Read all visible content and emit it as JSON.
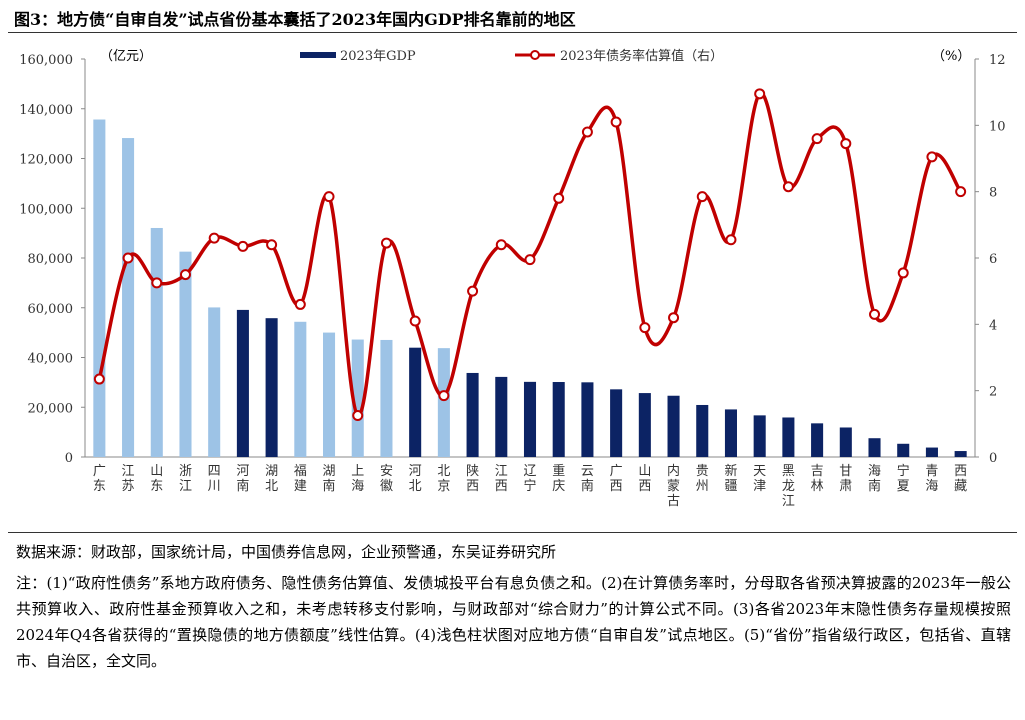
{
  "title": "图3：地方债“自审自发”试点省份基本囊括了2023年国内GDP排名靠前的地区",
  "source": "数据来源：财政部，国家统计局，中国债券信息网，企业预警通，东吴证券研究所",
  "notes": "注：(1)“政府性债务”系地方政府债务、隐性债务估算值、发债城投平台有息负债之和。(2)在计算债务率时，分母取各省预决算披露的2023年一般公共预算收入、政府性基金预算收入之和，未考虑转移支付影响，与财政部对“综合财力”的计算公式不同。(3)各省2023年末隐性债务存量规模按照2024年Q4各省获得的“置换隐债的地方债额度”线性估算。(4)浅色柱状图对应地方债“自审自发”试点地区。(5)“省份”指省级行政区，包括省、直辖市、自治区，全文同。",
  "chart_data": {
    "type": "bar+line",
    "left_unit": "（亿元）",
    "right_unit": "（%）",
    "ylim": [
      0,
      160000
    ],
    "y2lim": [
      0,
      12
    ],
    "yticks": [
      "0",
      "20,000",
      "40,000",
      "60,000",
      "80,000",
      "100,000",
      "120,000",
      "140,000",
      "160,000"
    ],
    "y2ticks": [
      "0",
      "2",
      "4",
      "6",
      "8",
      "10",
      "12"
    ],
    "legend_position": "top",
    "colors": {
      "pilot": "#9dc3e6",
      "nonpilot": "#0c2364",
      "line": "#c00000"
    },
    "categories": [
      "广东",
      "江苏",
      "山东",
      "浙江",
      "四川",
      "河南",
      "湖北",
      "福建",
      "湖南",
      "上海",
      "安徽",
      "河北",
      "北京",
      "陕西",
      "江西",
      "辽宁",
      "重庆",
      "云南",
      "广西",
      "山西",
      "内蒙古",
      "贵州",
      "新疆",
      "天津",
      "黑龙江",
      "吉林",
      "甘肃",
      "海南",
      "宁夏",
      "青海",
      "西藏"
    ],
    "pilot": [
      1,
      1,
      1,
      1,
      1,
      0,
      0,
      1,
      1,
      1,
      1,
      0,
      1,
      0,
      0,
      0,
      0,
      0,
      0,
      0,
      0,
      0,
      0,
      0,
      0,
      0,
      0,
      0,
      0,
      0,
      0
    ],
    "series": [
      {
        "name": "2023年GDP",
        "axis": "left",
        "type": "bar",
        "values": [
          135673,
          128222,
          92069,
          82553,
          60133,
          59132,
          55804,
          54355,
          50013,
          47219,
          47051,
          43944,
          43761,
          33786,
          32200,
          30209,
          30146,
          30021,
          27202,
          25698,
          24628,
          20913,
          19126,
          16737,
          15884,
          13531,
          11864,
          7551,
          5315,
          3799,
          2393
        ]
      },
      {
        "name": "2023年债务率估算值（右）",
        "axis": "right",
        "type": "line",
        "values": [
          2.35,
          6.0,
          5.25,
          5.5,
          6.6,
          6.35,
          6.4,
          4.6,
          7.85,
          1.25,
          6.45,
          4.1,
          1.85,
          5.0,
          6.4,
          5.95,
          7.8,
          9.8,
          10.1,
          3.9,
          4.2,
          7.85,
          6.55,
          10.95,
          8.15,
          9.6,
          9.45,
          4.3,
          5.55,
          9.05,
          8.0
        ]
      }
    ]
  }
}
